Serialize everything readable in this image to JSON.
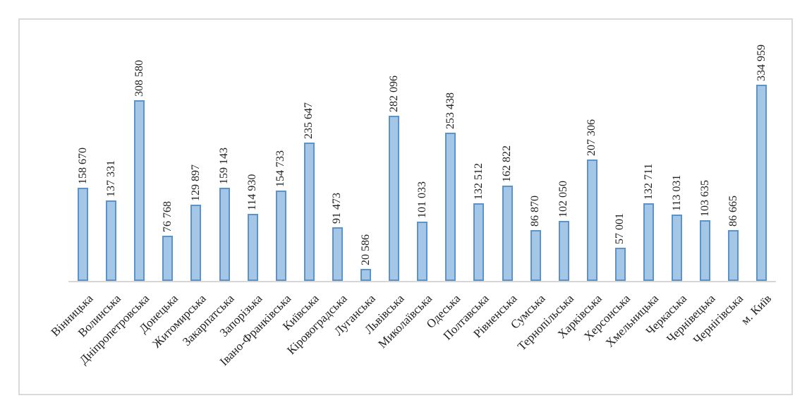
{
  "chart_data": {
    "type": "bar",
    "title": "",
    "xlabel": "",
    "ylabel": "",
    "grid": false,
    "legend": null,
    "y_axis_visible": false,
    "category_label_rotation": 45,
    "value_label_rotation": 90,
    "categories": [
      "Вінницька",
      "Волинська",
      "Дніпропетровська",
      "Донецька",
      "Житомирська",
      "Закарпатська",
      "Запорізька",
      "Івано-Франківська",
      "Київська",
      "Кіровоградська",
      "Луганська",
      "Львівська",
      "Миколаївська",
      "Одеська",
      "Полтавська",
      "Рівненська",
      "Сумська",
      "Тернопільська",
      "Харківська",
      "Херсонська",
      "Хмельницька",
      "Черкаська",
      "Чернівецька",
      "Чернігівська",
      "м. Київ"
    ],
    "values": [
      158670,
      137331,
      308580,
      76768,
      129897,
      159143,
      114930,
      154733,
      235647,
      91473,
      20586,
      282096,
      101033,
      253438,
      132512,
      162822,
      86870,
      102050,
      207306,
      57001,
      132711,
      113031,
      103635,
      86665,
      334959
    ],
    "value_labels": [
      "158 670",
      "137 331",
      "308 580",
      "76 768",
      "129 897",
      "159 143",
      "114 930",
      "154 733",
      "235 647",
      "91 473",
      "20 586",
      "282 096",
      "101 033",
      "253 438",
      "132 512",
      "162 822",
      "86 870",
      "102 050",
      "207 306",
      "57 001",
      "132 711",
      "113 031",
      "103 635",
      "86 665",
      "334 959"
    ],
    "ylim": [
      0,
      340000
    ]
  },
  "colors": {
    "bar_fill": "#A4C7E7",
    "bar_border": "#5E93C8",
    "axis_line": "#D6D6D6",
    "frame_border": "#D9D9D9",
    "text": "#1F1F1F",
    "background": "#FFFFFF"
  }
}
